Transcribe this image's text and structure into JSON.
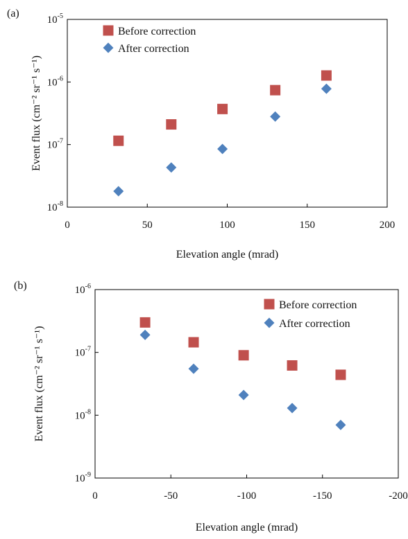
{
  "chart_data": [
    {
      "panel_label": "(a)",
      "type": "scatter",
      "xlabel": "Elevation angle (mrad)",
      "ylabel": "Event flux (cm⁻² sr⁻¹ s⁻¹)",
      "xlim": [
        0,
        200
      ],
      "xticks": [
        0,
        50,
        100,
        150,
        200
      ],
      "xtick_labels": [
        "0",
        "50",
        "100",
        "150",
        "200"
      ],
      "ylim": [
        1e-08,
        1e-05
      ],
      "yscale": "log",
      "ytick_labels": [
        {
          "base": "10",
          "exp": "-8"
        },
        {
          "base": "10",
          "exp": "-7"
        },
        {
          "base": "10",
          "exp": "-6"
        },
        {
          "base": "10",
          "exp": "-5"
        }
      ],
      "grid": false,
      "legend_position": "top-left",
      "series": [
        {
          "name": "Before correction",
          "marker": "square",
          "color": "#c0504d",
          "x": [
            32,
            65,
            97,
            130,
            162
          ],
          "y": [
            1.15e-07,
            2.1e-07,
            3.7e-07,
            7.4e-07,
            1.27e-06
          ]
        },
        {
          "name": "After correction",
          "marker": "diamond",
          "color": "#4f81bd",
          "x": [
            32,
            65,
            97,
            130,
            162
          ],
          "y": [
            1.8e-08,
            4.3e-08,
            8.5e-08,
            2.8e-07,
            7.8e-07
          ]
        }
      ]
    },
    {
      "panel_label": "(b)",
      "type": "scatter",
      "xlabel": "Elevation angle (mrad)",
      "ylabel": "Event flux (cm⁻² sr⁻¹ s⁻¹)",
      "xlim": [
        0,
        -200
      ],
      "xticks": [
        0,
        -50,
        -100,
        -150,
        -200
      ],
      "xtick_labels": [
        "0",
        "-50",
        "-100",
        "-150",
        "-200"
      ],
      "ylim": [
        1e-09,
        1e-06
      ],
      "yscale": "log",
      "ytick_labels": [
        {
          "base": "10",
          "exp": "-9"
        },
        {
          "base": "10",
          "exp": "-8"
        },
        {
          "base": "10",
          "exp": "-7"
        },
        {
          "base": "10",
          "exp": "-6"
        }
      ],
      "grid": false,
      "legend_position": "top-right",
      "series": [
        {
          "name": "Before correction",
          "marker": "square",
          "color": "#c0504d",
          "x": [
            -33,
            -65,
            -98,
            -130,
            -162
          ],
          "y": [
            3e-07,
            1.45e-07,
            9e-08,
            6.2e-08,
            4.4e-08
          ]
        },
        {
          "name": "After correction",
          "marker": "diamond",
          "color": "#4f81bd",
          "x": [
            -33,
            -65,
            -98,
            -130,
            -162
          ],
          "y": [
            1.9e-07,
            5.5e-08,
            2.1e-08,
            1.3e-08,
            7e-09
          ]
        }
      ]
    }
  ]
}
